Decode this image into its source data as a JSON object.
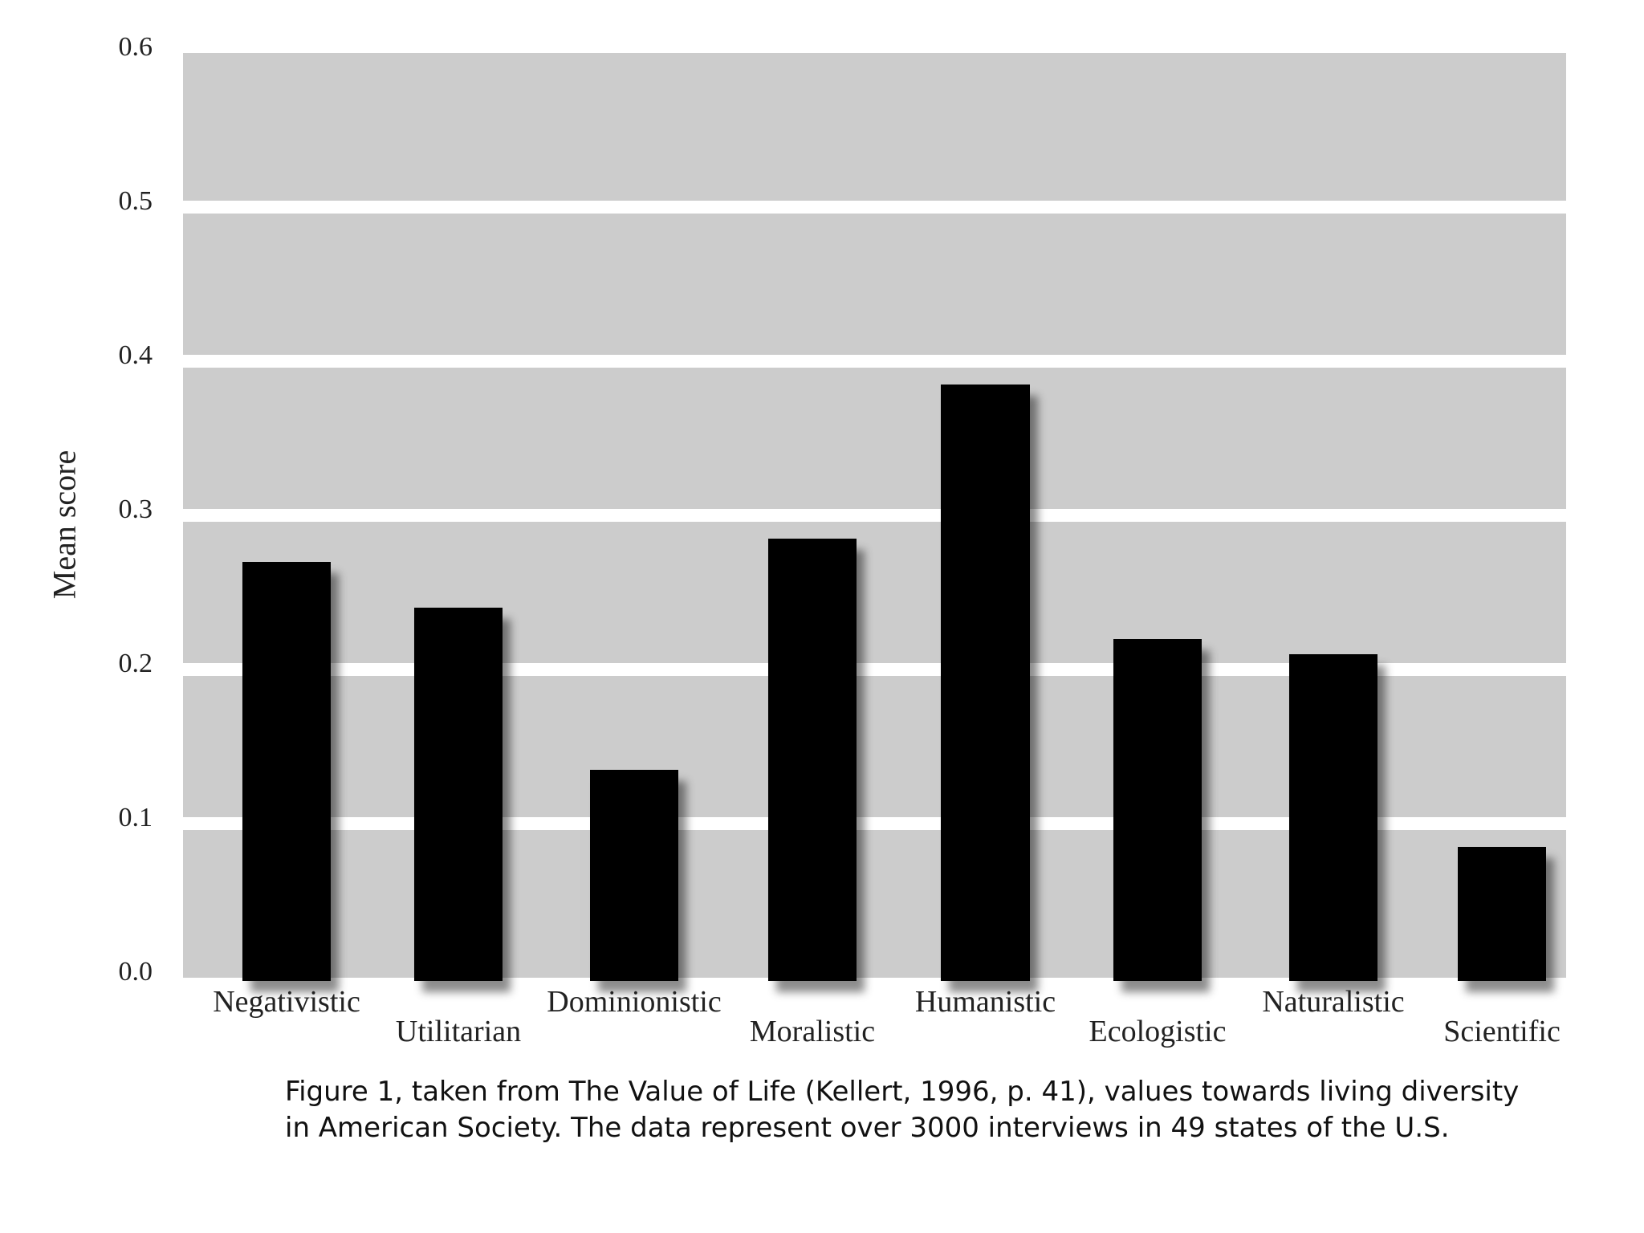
{
  "chart_data": {
    "type": "bar",
    "title": "",
    "xlabel": "",
    "ylabel": "Mean score",
    "ylim": [
      0.0,
      0.6
    ],
    "yticks": [
      "0.0",
      "0.1",
      "0.2",
      "0.3",
      "0.4",
      "0.5",
      "0.6"
    ],
    "grid": true,
    "categories": [
      "Negativistic",
      "Utilitarian",
      "Dominionistic",
      "Moralistic",
      "Humanistic",
      "Ecologistic",
      "Naturalistic",
      "Scientific"
    ],
    "values": [
      0.27,
      0.24,
      0.135,
      0.285,
      0.385,
      0.22,
      0.21,
      0.085
    ],
    "colors": {
      "bar": "#000000",
      "plot_background": "#cccccc",
      "gridline": "#ffffff"
    }
  },
  "caption": "Figure 1, taken from The Value of Life (Kellert, 1996, p. 41), values towards living diversity in American Society. The data represent over 3000 interviews in 49 states of the U.S."
}
